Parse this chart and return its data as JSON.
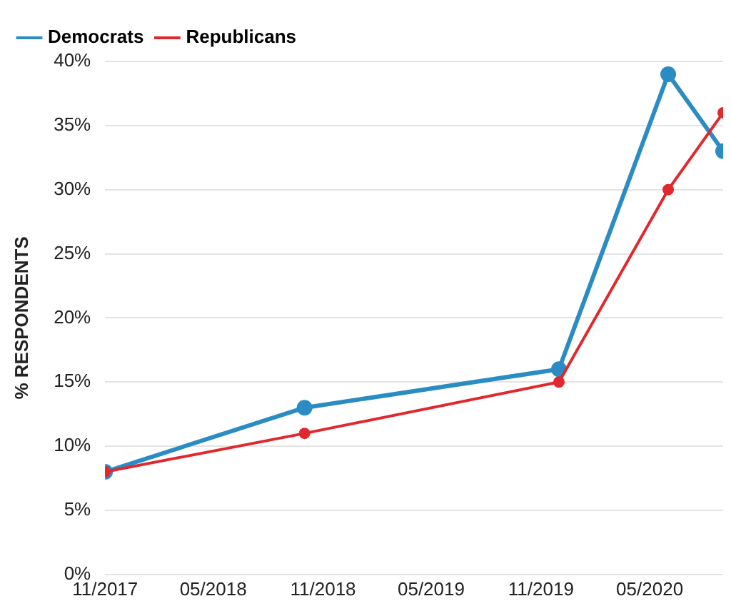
{
  "chart_data": {
    "type": "line",
    "ylabel": "% RESPONDENTS",
    "x": [
      "2017-11",
      "2018-10",
      "2019-12",
      "2020-06",
      "2020-09"
    ],
    "series": [
      {
        "name": "Democrats",
        "color": "#2b8cc4",
        "values": [
          8,
          13,
          16,
          39,
          33
        ]
      },
      {
        "name": "Republicans",
        "color": "#e0282e",
        "values": [
          8,
          11,
          15,
          30,
          36
        ]
      }
    ],
    "xlim": [
      "2017-11",
      "2020-09"
    ],
    "xticks": [
      {
        "value": "2017-11",
        "label": "11/2017"
      },
      {
        "value": "2018-05",
        "label": "05/2018"
      },
      {
        "value": "2018-11",
        "label": "11/2018"
      },
      {
        "value": "2019-05",
        "label": "05/2019"
      },
      {
        "value": "2019-11",
        "label": "11/2019"
      },
      {
        "value": "2020-05",
        "label": "05/2020"
      }
    ],
    "ylim": [
      0,
      40
    ],
    "yticks": [
      {
        "value": 0,
        "label": "0%"
      },
      {
        "value": 5,
        "label": "5%"
      },
      {
        "value": 10,
        "label": "10%"
      },
      {
        "value": 15,
        "label": "15%"
      },
      {
        "value": 20,
        "label": "20%"
      },
      {
        "value": 25,
        "label": "25%"
      },
      {
        "value": 30,
        "label": "30%"
      },
      {
        "value": 35,
        "label": "35%"
      },
      {
        "value": 40,
        "label": "40%"
      }
    ],
    "grid": "y",
    "legend": "top left",
    "marker": "circle",
    "line_style": "solid"
  }
}
